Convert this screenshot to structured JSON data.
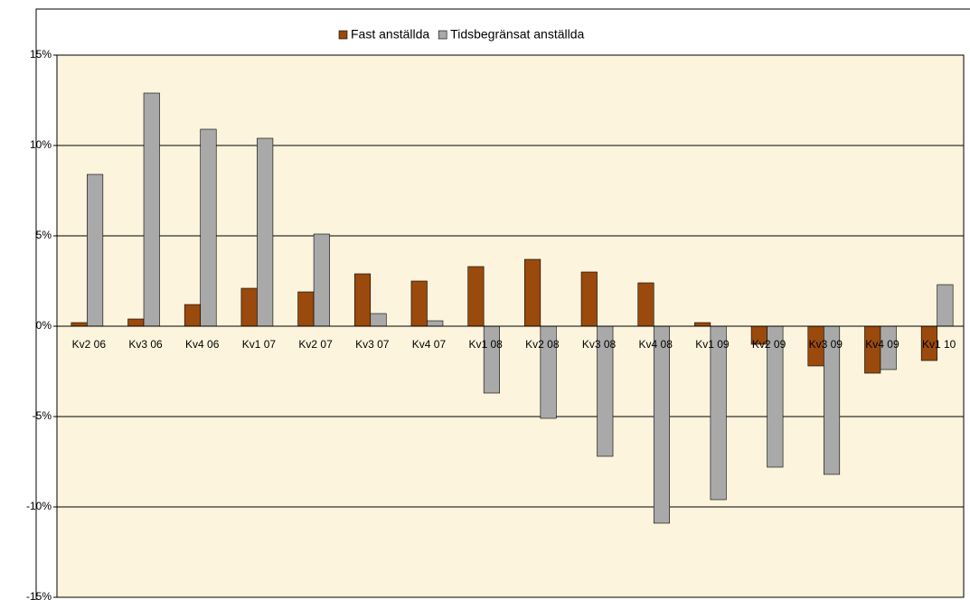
{
  "chart_data": {
    "type": "bar",
    "categories": [
      "Kv2 06",
      "Kv3 06",
      "Kv4 06",
      "Kv1 07",
      "Kv2 07",
      "Kv3 07",
      "Kv4 07",
      "Kv1 08",
      "Kv2 08",
      "Kv3 08",
      "Kv4 08",
      "Kv1 09",
      "Kv2 09",
      "Kv3 09",
      "Kv4 09",
      "Kv1 10"
    ],
    "series": [
      {
        "name": "Fast anställda",
        "color": "#9a4a0c",
        "values": [
          0.2,
          0.4,
          1.2,
          2.1,
          1.9,
          2.9,
          2.5,
          3.3,
          3.7,
          3.0,
          2.4,
          0.2,
          -1.0,
          -2.2,
          -2.6,
          -1.9
        ]
      },
      {
        "name": "Tidsbegränsat anställda",
        "color": "#a9a9a9",
        "values": [
          8.4,
          12.9,
          10.9,
          10.4,
          5.1,
          0.7,
          0.3,
          -3.7,
          -5.1,
          -7.2,
          -10.9,
          -9.6,
          -7.8,
          -8.2,
          -2.4,
          2.3
        ]
      }
    ],
    "ylim": [
      -15,
      15
    ],
    "yticks": [
      {
        "value": -15,
        "label": "-15%"
      },
      {
        "value": -10,
        "label": "-10%"
      },
      {
        "value": -5,
        "label": "-5%"
      },
      {
        "value": 0,
        "label": "0%"
      },
      {
        "value": 5,
        "label": "5%"
      },
      {
        "value": 10,
        "label": "10%"
      },
      {
        "value": 15,
        "label": "15%"
      }
    ],
    "grid": true,
    "legend": "top"
  }
}
